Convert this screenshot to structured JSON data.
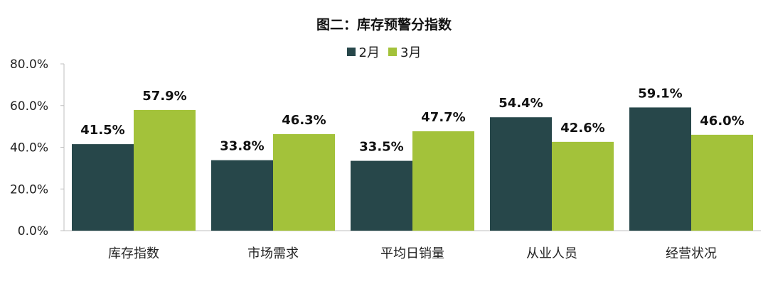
{
  "chart_data": {
    "type": "bar",
    "title": "图二：库存预警分指数",
    "categories": [
      "库存指数",
      "市场需求",
      "平均日销量",
      "从业人员",
      "经营状况"
    ],
    "series": [
      {
        "name": "2月",
        "color": "#27474A",
        "values": [
          41.5,
          33.8,
          33.5,
          54.4,
          59.1
        ],
        "labels": [
          "41.5%",
          "33.8%",
          "33.5%",
          "54.4%",
          "59.1%"
        ]
      },
      {
        "name": "3月",
        "color": "#A3C23A",
        "values": [
          57.9,
          46.3,
          47.7,
          42.6,
          46.0
        ],
        "labels": [
          "57.9%",
          "46.3%",
          "47.7%",
          "42.6%",
          "46.0%"
        ]
      }
    ],
    "ylim": [
      0,
      80
    ],
    "yticks": [
      0,
      20,
      40,
      60,
      80
    ],
    "ytick_labels": [
      "0.0%",
      "20.0%",
      "40.0%",
      "60.0%",
      "80.0%"
    ],
    "xlabel": "",
    "ylabel": "",
    "grid": false,
    "legend_position": "top-center"
  }
}
